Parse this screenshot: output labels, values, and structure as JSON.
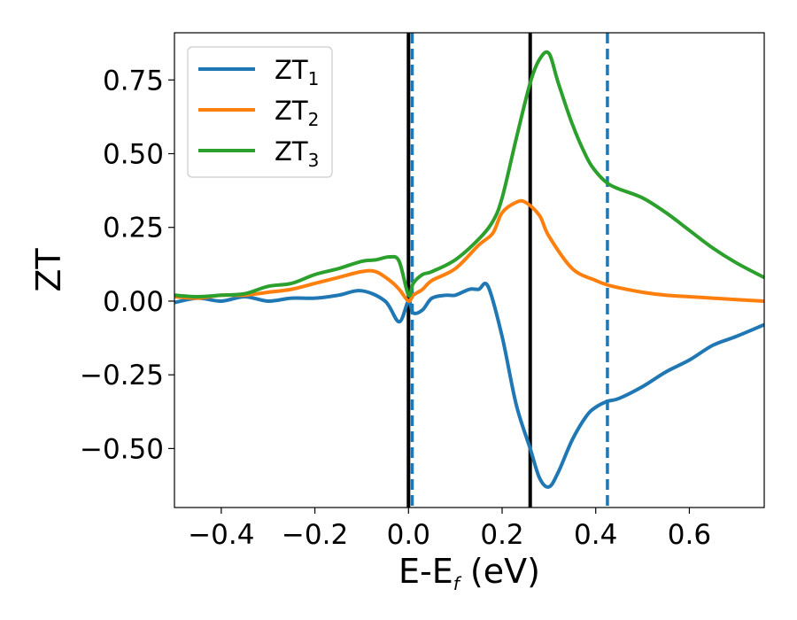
{
  "chart_data": {
    "type": "line",
    "xlabel": "E-E",
    "xlabel_sub": "f",
    "xlabel_unit": " (eV)",
    "ylabel": "ZT",
    "xlim": [
      -0.5,
      0.76
    ],
    "ylim": [
      -0.7,
      0.91
    ],
    "xticks": [
      -0.4,
      -0.2,
      0.0,
      0.2,
      0.4,
      0.6
    ],
    "xtick_labels": [
      "−0.4",
      "−0.2",
      "0.0",
      "0.2",
      "0.4",
      "0.6"
    ],
    "yticks": [
      -0.5,
      -0.25,
      0.0,
      0.25,
      0.5,
      0.75
    ],
    "ytick_labels": [
      "−0.50",
      "−0.25",
      "0.00",
      "0.25",
      "0.50",
      "0.75"
    ],
    "grid": false,
    "legend_position": "top-left",
    "vlines": [
      {
        "x": 0.0,
        "style": "solid",
        "color": "#000000"
      },
      {
        "x": 0.26,
        "style": "solid",
        "color": "#000000"
      },
      {
        "x": 0.008,
        "style": "dashed",
        "color": "#1f77b4"
      },
      {
        "x": 0.425,
        "style": "dashed",
        "color": "#1f77b4"
      }
    ],
    "series": [
      {
        "name": "ZT",
        "name_sub": "1",
        "color": "#1f77b4",
        "x": [
          -0.5,
          -0.45,
          -0.4,
          -0.35,
          -0.3,
          -0.25,
          -0.2,
          -0.15,
          -0.1,
          -0.05,
          -0.02,
          0.0,
          0.01,
          0.03,
          0.05,
          0.08,
          0.1,
          0.13,
          0.15,
          0.17,
          0.2,
          0.23,
          0.26,
          0.28,
          0.3,
          0.32,
          0.35,
          0.38,
          0.4,
          0.425,
          0.45,
          0.5,
          0.55,
          0.6,
          0.65,
          0.7,
          0.76
        ],
        "y": [
          -0.005,
          0.01,
          0.0,
          0.015,
          0.0,
          0.01,
          0.01,
          0.02,
          0.035,
          0.0,
          -0.07,
          0.0,
          -0.04,
          -0.03,
          0.01,
          0.02,
          0.02,
          0.04,
          0.04,
          0.05,
          -0.12,
          -0.35,
          -0.5,
          -0.6,
          -0.63,
          -0.58,
          -0.47,
          -0.39,
          -0.36,
          -0.34,
          -0.33,
          -0.29,
          -0.24,
          -0.2,
          -0.15,
          -0.12,
          -0.08
        ]
      },
      {
        "name": "ZT",
        "name_sub": "2",
        "color": "#ff7f0e",
        "x": [
          -0.5,
          -0.45,
          -0.4,
          -0.35,
          -0.3,
          -0.25,
          -0.2,
          -0.15,
          -0.1,
          -0.07,
          -0.04,
          -0.02,
          0.0,
          0.01,
          0.03,
          0.05,
          0.1,
          0.15,
          0.18,
          0.2,
          0.23,
          0.25,
          0.28,
          0.3,
          0.35,
          0.4,
          0.425,
          0.45,
          0.5,
          0.55,
          0.6,
          0.65,
          0.7,
          0.76
        ],
        "y": [
          0.015,
          0.01,
          0.02,
          0.02,
          0.03,
          0.04,
          0.06,
          0.08,
          0.1,
          0.1,
          0.07,
          0.04,
          0.0,
          0.02,
          0.04,
          0.07,
          0.11,
          0.19,
          0.23,
          0.3,
          0.335,
          0.335,
          0.29,
          0.22,
          0.11,
          0.07,
          0.055,
          0.045,
          0.03,
          0.02,
          0.015,
          0.01,
          0.005,
          0.0
        ]
      },
      {
        "name": "ZT",
        "name_sub": "3",
        "color": "#2ca02c",
        "x": [
          -0.5,
          -0.45,
          -0.4,
          -0.35,
          -0.3,
          -0.25,
          -0.2,
          -0.15,
          -0.1,
          -0.07,
          -0.04,
          -0.02,
          0.0,
          0.01,
          0.03,
          0.05,
          0.1,
          0.15,
          0.18,
          0.2,
          0.23,
          0.26,
          0.28,
          0.3,
          0.32,
          0.35,
          0.38,
          0.4,
          0.425,
          0.45,
          0.5,
          0.55,
          0.6,
          0.65,
          0.7,
          0.76
        ],
        "y": [
          0.02,
          0.015,
          0.02,
          0.025,
          0.05,
          0.06,
          0.09,
          0.11,
          0.135,
          0.14,
          0.15,
          0.135,
          0.02,
          0.06,
          0.09,
          0.1,
          0.14,
          0.21,
          0.27,
          0.35,
          0.55,
          0.74,
          0.82,
          0.84,
          0.74,
          0.6,
          0.49,
          0.44,
          0.4,
          0.38,
          0.35,
          0.3,
          0.24,
          0.18,
          0.13,
          0.08
        ]
      }
    ]
  }
}
